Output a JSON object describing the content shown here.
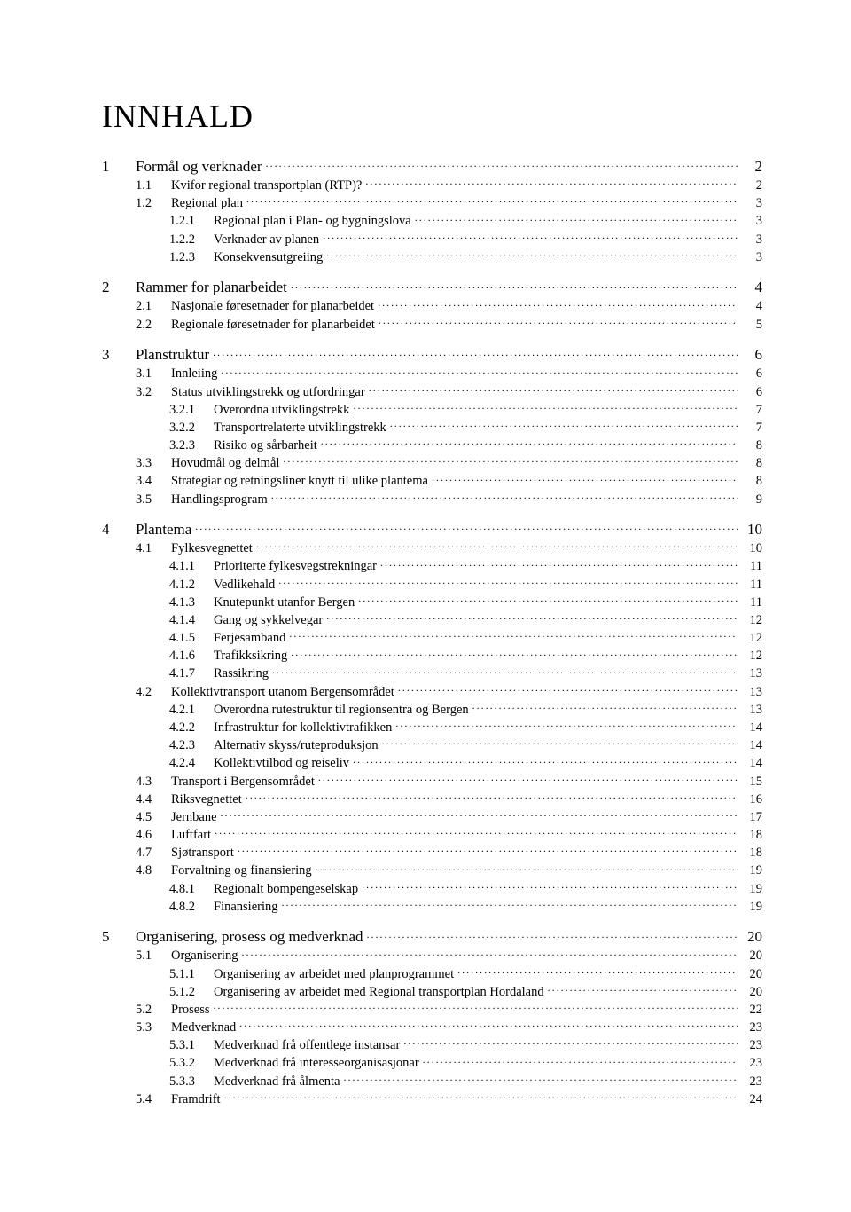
{
  "title": "INNHALD",
  "entries": [
    {
      "level": 1,
      "num": "1",
      "label": "Formål og verknader",
      "page": "2",
      "gap": true
    },
    {
      "level": 2,
      "num": "1.1",
      "label": "Kvifor regional transportplan (RTP)?",
      "page": "2"
    },
    {
      "level": 2,
      "num": "1.2",
      "label": "Regional plan",
      "page": "3"
    },
    {
      "level": 3,
      "num": "1.2.1",
      "label": "Regional plan i Plan- og bygningslova",
      "page": "3"
    },
    {
      "level": 3,
      "num": "1.2.2",
      "label": "Verknader av planen",
      "page": "3"
    },
    {
      "level": 3,
      "num": "1.2.3",
      "label": "Konsekvensutgreiing",
      "page": "3"
    },
    {
      "level": 1,
      "num": "2",
      "label": "Rammer for planarbeidet",
      "page": "4",
      "gap": true
    },
    {
      "level": 2,
      "num": "2.1",
      "label": "Nasjonale føresetnader for planarbeidet",
      "page": "4"
    },
    {
      "level": 2,
      "num": "2.2",
      "label": "Regionale føresetnader for planarbeidet",
      "page": "5"
    },
    {
      "level": 1,
      "num": "3",
      "label": "Planstruktur",
      "page": "6",
      "gap": true
    },
    {
      "level": 2,
      "num": "3.1",
      "label": "Innleiing",
      "page": "6"
    },
    {
      "level": 2,
      "num": "3.2",
      "label": "Status utviklingstrekk og utfordringar",
      "page": "6"
    },
    {
      "level": 3,
      "num": "3.2.1",
      "label": "Overordna utviklingstrekk",
      "page": "7"
    },
    {
      "level": 3,
      "num": "3.2.2",
      "label": "Transportrelaterte utviklingstrekk",
      "page": "7"
    },
    {
      "level": 3,
      "num": "3.2.3",
      "label": "Risiko og sårbarheit",
      "page": "8"
    },
    {
      "level": 2,
      "num": "3.3",
      "label": "Hovudmål og delmål",
      "page": "8"
    },
    {
      "level": 2,
      "num": "3.4",
      "label": "Strategiar og retningsliner knytt til ulike plantema",
      "page": "8"
    },
    {
      "level": 2,
      "num": "3.5",
      "label": "Handlingsprogram",
      "page": "9"
    },
    {
      "level": 1,
      "num": "4",
      "label": "Plantema",
      "page": "10",
      "gap": true
    },
    {
      "level": 2,
      "num": "4.1",
      "label": "Fylkesvegnettet",
      "page": "10"
    },
    {
      "level": 3,
      "num": "4.1.1",
      "label": "Prioriterte fylkesvegstrekningar",
      "page": "11"
    },
    {
      "level": 3,
      "num": "4.1.2",
      "label": "Vedlikehald",
      "page": "11"
    },
    {
      "level": 3,
      "num": "4.1.3",
      "label": "Knutepunkt utanfor Bergen",
      "page": "11"
    },
    {
      "level": 3,
      "num": "4.1.4",
      "label": "Gang og sykkelvegar",
      "page": "12"
    },
    {
      "level": 3,
      "num": "4.1.5",
      "label": "Ferjesamband",
      "page": "12"
    },
    {
      "level": 3,
      "num": "4.1.6",
      "label": "Trafikksikring",
      "page": "12"
    },
    {
      "level": 3,
      "num": "4.1.7",
      "label": "Rassikring",
      "page": "13"
    },
    {
      "level": 2,
      "num": "4.2",
      "label": "Kollektivtransport utanom Bergensområdet",
      "page": "13"
    },
    {
      "level": 3,
      "num": "4.2.1",
      "label": "Overordna rutestruktur til regionsentra og Bergen",
      "page": "13"
    },
    {
      "level": 3,
      "num": "4.2.2",
      "label": "Infrastruktur for kollektivtrafikken",
      "page": "14"
    },
    {
      "level": 3,
      "num": "4.2.3",
      "label": "Alternativ skyss/ruteproduksjon",
      "page": "14"
    },
    {
      "level": 3,
      "num": "4.2.4",
      "label": "Kollektivtilbod og reiseliv",
      "page": "14"
    },
    {
      "level": 2,
      "num": "4.3",
      "label": "Transport i Bergensområdet",
      "page": "15"
    },
    {
      "level": 2,
      "num": "4.4",
      "label": "Riksvegnettet",
      "page": "16"
    },
    {
      "level": 2,
      "num": "4.5",
      "label": "Jernbane",
      "page": "17"
    },
    {
      "level": 2,
      "num": "4.6",
      "label": "Luftfart",
      "page": "18"
    },
    {
      "level": 2,
      "num": "4.7",
      "label": "Sjøtransport",
      "page": "18"
    },
    {
      "level": 2,
      "num": "4.8",
      "label": "Forvaltning og finansiering",
      "page": "19"
    },
    {
      "level": 3,
      "num": "4.8.1",
      "label": "Regionalt bompengeselskap",
      "page": "19"
    },
    {
      "level": 3,
      "num": "4.8.2",
      "label": "Finansiering",
      "page": "19"
    },
    {
      "level": 1,
      "num": "5",
      "label": "Organisering, prosess og medverknad",
      "page": "20",
      "gap": true
    },
    {
      "level": 2,
      "num": "5.1",
      "label": "Organisering",
      "page": "20"
    },
    {
      "level": 3,
      "num": "5.1.1",
      "label": "Organisering av arbeidet med planprogrammet",
      "page": "20"
    },
    {
      "level": 3,
      "num": "5.1.2",
      "label": "Organisering av arbeidet med Regional transportplan Hordaland",
      "page": "20"
    },
    {
      "level": 2,
      "num": "5.2",
      "label": "Prosess",
      "page": "22"
    },
    {
      "level": 2,
      "num": "5.3",
      "label": "Medverknad",
      "page": "23"
    },
    {
      "level": 3,
      "num": "5.3.1",
      "label": "Medverknad frå offentlege instansar",
      "page": "23"
    },
    {
      "level": 3,
      "num": "5.3.2",
      "label": "Medverknad frå interesseorganisasjonar",
      "page": "23"
    },
    {
      "level": 3,
      "num": "5.3.3",
      "label": "Medverknad frå ålmenta",
      "page": "23"
    },
    {
      "level": 2,
      "num": "5.4",
      "label": "Framdrift",
      "page": "24"
    }
  ]
}
